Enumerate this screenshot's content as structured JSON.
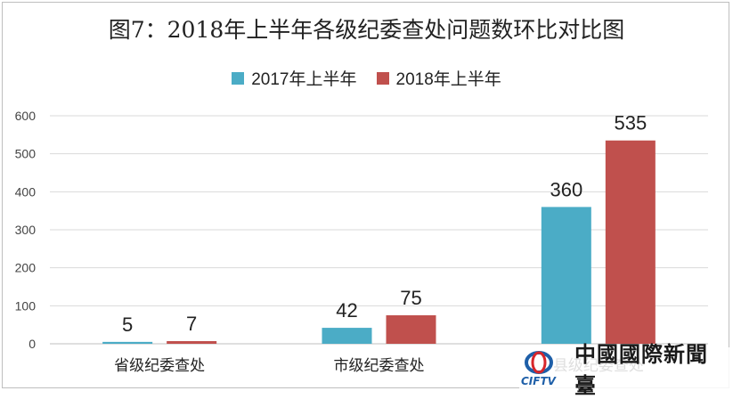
{
  "chart_data": {
    "type": "bar",
    "title": "图7：2018年上半年各级纪委查处问题数环比对比图",
    "categories": [
      "省级纪委查处",
      "市级纪委查处",
      "县级纪委查处"
    ],
    "series": [
      {
        "name": "2017年上半年",
        "color": "#4bacc6",
        "values": [
          5,
          42,
          360
        ]
      },
      {
        "name": "2018年上半年",
        "color": "#c0504d",
        "values": [
          7,
          75,
          535
        ]
      }
    ],
    "ylim": [
      0,
      600
    ],
    "yticks": [
      0,
      100,
      200,
      300,
      400,
      500,
      600
    ],
    "grid": true,
    "legend": "top-center"
  },
  "watermark": {
    "logo_text": "CIFTV",
    "text": "中國國際新聞臺",
    "logo_colors": [
      "#1e5fa8",
      "#d7262b"
    ]
  }
}
